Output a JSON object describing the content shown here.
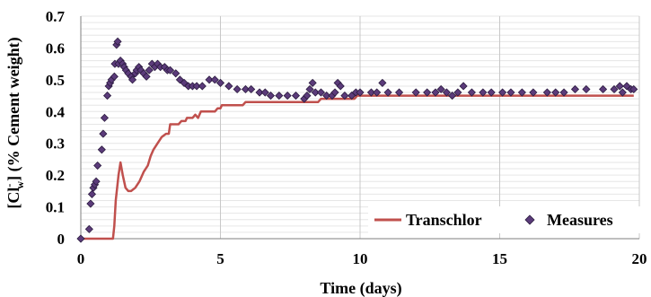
{
  "chart_data": {
    "type": "line",
    "title": "",
    "xlabel": "Time (days)",
    "ylabel": {
      "prefix": "[Cl",
      "sup": "-",
      "sub": "w",
      "suffix": "] (% Cement weight)"
    },
    "xlim": [
      0,
      20
    ],
    "ylim": [
      0,
      0.7
    ],
    "x_ticks": [
      "0",
      "5",
      "10",
      "15",
      "20"
    ],
    "y_ticks": [
      "0",
      "0.1",
      "0.2",
      "0.3",
      "0.4",
      "0.5",
      "0.6",
      "0.7"
    ],
    "grid": {
      "major_x": [
        5,
        10,
        15,
        20
      ],
      "minor_y_step": 0.02
    },
    "legend_position": "bottom-right",
    "colors": {
      "transchlor": "#c0504d",
      "measures_fill": "#5b3b7a",
      "measures_edge": "#2a1a3e",
      "grid_major": "#c8c8c8",
      "grid_minor": "#e6e6e6"
    },
    "series": [
      {
        "name": "Transchlor",
        "kind": "line",
        "points": [
          [
            0,
            0
          ],
          [
            0.5,
            0
          ],
          [
            1.0,
            0
          ],
          [
            1.15,
            0
          ],
          [
            1.2,
            0.04
          ],
          [
            1.25,
            0.12
          ],
          [
            1.35,
            0.2
          ],
          [
            1.42,
            0.24
          ],
          [
            1.5,
            0.2
          ],
          [
            1.6,
            0.16
          ],
          [
            1.7,
            0.15
          ],
          [
            1.8,
            0.15
          ],
          [
            1.95,
            0.16
          ],
          [
            2.1,
            0.18
          ],
          [
            2.25,
            0.21
          ],
          [
            2.4,
            0.23
          ],
          [
            2.5,
            0.26
          ],
          [
            2.6,
            0.28
          ],
          [
            2.75,
            0.3
          ],
          [
            2.9,
            0.32
          ],
          [
            3.05,
            0.33
          ],
          [
            3.15,
            0.33
          ],
          [
            3.2,
            0.36
          ],
          [
            3.5,
            0.36
          ],
          [
            3.6,
            0.37
          ],
          [
            3.75,
            0.37
          ],
          [
            3.8,
            0.38
          ],
          [
            4.0,
            0.38
          ],
          [
            4.1,
            0.39
          ],
          [
            4.2,
            0.38
          ],
          [
            4.3,
            0.4
          ],
          [
            4.8,
            0.4
          ],
          [
            4.9,
            0.41
          ],
          [
            5.0,
            0.41
          ],
          [
            5.05,
            0.42
          ],
          [
            5.8,
            0.42
          ],
          [
            5.9,
            0.43
          ],
          [
            8.5,
            0.43
          ],
          [
            8.6,
            0.44
          ],
          [
            9.8,
            0.44
          ],
          [
            9.9,
            0.45
          ],
          [
            19.8,
            0.45
          ]
        ]
      },
      {
        "name": "Measures",
        "kind": "scatter",
        "points": [
          [
            0,
            0
          ],
          [
            0.3,
            0.03
          ],
          [
            0.35,
            0.11
          ],
          [
            0.4,
            0.14
          ],
          [
            0.45,
            0.16
          ],
          [
            0.5,
            0.17
          ],
          [
            0.55,
            0.18
          ],
          [
            0.6,
            0.23
          ],
          [
            0.75,
            0.28
          ],
          [
            0.8,
            0.33
          ],
          [
            0.85,
            0.38
          ],
          [
            0.95,
            0.45
          ],
          [
            1.0,
            0.48
          ],
          [
            1.05,
            0.49
          ],
          [
            1.1,
            0.5
          ],
          [
            1.2,
            0.51
          ],
          [
            1.22,
            0.55
          ],
          [
            1.28,
            0.61
          ],
          [
            1.32,
            0.62
          ],
          [
            1.35,
            0.55
          ],
          [
            1.42,
            0.56
          ],
          [
            1.5,
            0.55
          ],
          [
            1.55,
            0.54
          ],
          [
            1.62,
            0.53
          ],
          [
            1.7,
            0.52
          ],
          [
            1.8,
            0.51
          ],
          [
            1.85,
            0.5
          ],
          [
            1.95,
            0.52
          ],
          [
            2.0,
            0.53
          ],
          [
            2.08,
            0.54
          ],
          [
            2.15,
            0.53
          ],
          [
            2.25,
            0.52
          ],
          [
            2.35,
            0.51
          ],
          [
            2.45,
            0.53
          ],
          [
            2.55,
            0.55
          ],
          [
            2.65,
            0.54
          ],
          [
            2.75,
            0.55
          ],
          [
            2.85,
            0.54
          ],
          [
            3.0,
            0.54
          ],
          [
            3.1,
            0.53
          ],
          [
            3.2,
            0.53
          ],
          [
            3.4,
            0.52
          ],
          [
            3.55,
            0.5
          ],
          [
            3.7,
            0.49
          ],
          [
            3.85,
            0.48
          ],
          [
            4.0,
            0.48
          ],
          [
            4.15,
            0.48
          ],
          [
            4.35,
            0.48
          ],
          [
            4.6,
            0.5
          ],
          [
            4.8,
            0.5
          ],
          [
            5.0,
            0.49
          ],
          [
            5.3,
            0.48
          ],
          [
            5.6,
            0.47
          ],
          [
            5.9,
            0.47
          ],
          [
            6.1,
            0.47
          ],
          [
            6.4,
            0.46
          ],
          [
            6.6,
            0.46
          ],
          [
            6.8,
            0.45
          ],
          [
            7.1,
            0.45
          ],
          [
            7.4,
            0.45
          ],
          [
            7.7,
            0.45
          ],
          [
            8.0,
            0.44
          ],
          [
            8.1,
            0.45
          ],
          [
            8.2,
            0.47
          ],
          [
            8.3,
            0.49
          ],
          [
            8.4,
            0.46
          ],
          [
            8.6,
            0.46
          ],
          [
            8.8,
            0.45
          ],
          [
            9.0,
            0.45
          ],
          [
            9.1,
            0.46
          ],
          [
            9.2,
            0.49
          ],
          [
            9.3,
            0.48
          ],
          [
            9.45,
            0.45
          ],
          [
            9.7,
            0.45
          ],
          [
            9.85,
            0.46
          ],
          [
            10.0,
            0.46
          ],
          [
            10.4,
            0.46
          ],
          [
            10.6,
            0.46
          ],
          [
            10.8,
            0.49
          ],
          [
            11.0,
            0.46
          ],
          [
            11.4,
            0.46
          ],
          [
            12.0,
            0.46
          ],
          [
            12.4,
            0.46
          ],
          [
            12.7,
            0.46
          ],
          [
            12.9,
            0.47
          ],
          [
            13.1,
            0.46
          ],
          [
            13.3,
            0.45
          ],
          [
            13.5,
            0.46
          ],
          [
            13.7,
            0.48
          ],
          [
            14.0,
            0.46
          ],
          [
            14.4,
            0.46
          ],
          [
            14.7,
            0.46
          ],
          [
            15.1,
            0.46
          ],
          [
            15.4,
            0.46
          ],
          [
            15.8,
            0.46
          ],
          [
            16.2,
            0.46
          ],
          [
            16.7,
            0.46
          ],
          [
            17.0,
            0.46
          ],
          [
            17.3,
            0.46
          ],
          [
            17.7,
            0.47
          ],
          [
            18.1,
            0.47
          ],
          [
            18.7,
            0.47
          ],
          [
            19.1,
            0.47
          ],
          [
            19.3,
            0.48
          ],
          [
            19.4,
            0.46
          ],
          [
            19.55,
            0.48
          ],
          [
            19.7,
            0.47
          ],
          [
            19.8,
            0.47
          ]
        ]
      }
    ]
  }
}
